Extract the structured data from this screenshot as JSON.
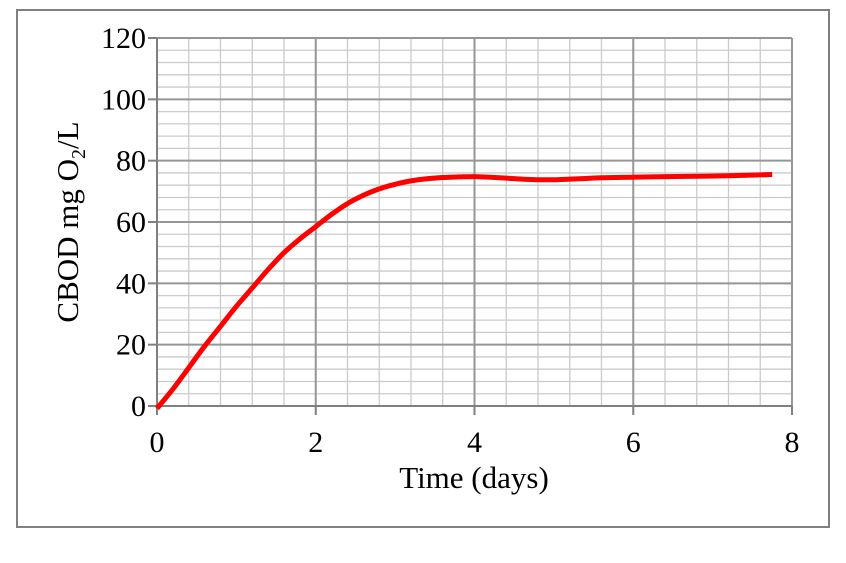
{
  "window": {
    "background": "#ffffff"
  },
  "chart_data": {
    "type": "line",
    "title": "",
    "xlabel": "Time (days)",
    "ylabel": "CBOD mg O2/L",
    "ylabel_parts": {
      "pre": "CBOD mg O",
      "sub": "2",
      "post": "/L"
    },
    "xlim": [
      0,
      8
    ],
    "ylim": [
      0,
      120
    ],
    "x_ticks": [
      0,
      2,
      4,
      6,
      8
    ],
    "y_ticks": [
      0,
      20,
      40,
      60,
      80,
      100,
      120
    ],
    "x_major_step": 2,
    "x_minor_step": 0.4,
    "y_major_step": 20,
    "y_minor_step": 4,
    "grid": "major+minor",
    "legend_position": "none",
    "series": [
      {
        "name": "CBOD",
        "color": "#fe0000",
        "line_width": 5,
        "points": [
          [
            0,
            -0.8
          ],
          [
            0.2,
            5.5
          ],
          [
            0.4,
            12.5
          ],
          [
            0.6,
            19.5
          ],
          [
            0.8,
            26
          ],
          [
            1.0,
            32.5
          ],
          [
            1.2,
            38.5
          ],
          [
            1.4,
            44.5
          ],
          [
            1.6,
            50
          ],
          [
            1.8,
            54.5
          ],
          [
            2.0,
            58.5
          ],
          [
            2.2,
            62.5
          ],
          [
            2.4,
            66
          ],
          [
            2.6,
            68.7
          ],
          [
            2.8,
            70.8
          ],
          [
            3.0,
            72.3
          ],
          [
            3.2,
            73.4
          ],
          [
            3.4,
            74.1
          ],
          [
            3.6,
            74.5
          ],
          [
            3.8,
            74.7
          ],
          [
            4.0,
            74.8
          ],
          [
            4.2,
            74.6
          ],
          [
            4.4,
            74.3
          ],
          [
            4.6,
            74.0
          ],
          [
            4.8,
            73.8
          ],
          [
            5.0,
            73.8
          ],
          [
            5.2,
            74.0
          ],
          [
            5.4,
            74.2
          ],
          [
            5.6,
            74.4
          ],
          [
            6.0,
            74.6
          ],
          [
            6.4,
            74.8
          ],
          [
            6.8,
            74.9
          ],
          [
            7.2,
            75.1
          ],
          [
            7.5,
            75.3
          ],
          [
            7.75,
            75.5
          ]
        ]
      }
    ]
  },
  "colors": {
    "chart_border": "#808080",
    "axis_line": "#7f7f7f",
    "major_grid": "#969696",
    "minor_grid": "#cbcbcb",
    "tick_mark": "#7f7f7f",
    "series_red": "#fe0000",
    "label_text": "#000000"
  }
}
